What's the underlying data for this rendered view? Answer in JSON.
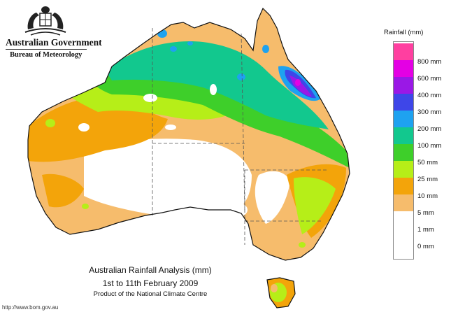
{
  "header": {
    "government": "Australian Government",
    "bureau": "Bureau of Meteorology"
  },
  "legend": {
    "title": "Rainfall (mm)",
    "items": [
      {
        "label": "800 mm",
        "color": "#ff3fa0"
      },
      {
        "label": "600 mm",
        "color": "#e400e4"
      },
      {
        "label": "400 mm",
        "color": "#9a18e6"
      },
      {
        "label": "300 mm",
        "color": "#3e46e8"
      },
      {
        "label": "200 mm",
        "color": "#1ea2f0"
      },
      {
        "label": "100 mm",
        "color": "#12c88e"
      },
      {
        "label": "50 mm",
        "color": "#3ecf2a"
      },
      {
        "label": "25 mm",
        "color": "#b6ee18"
      },
      {
        "label": "10 mm",
        "color": "#f3a40a"
      },
      {
        "label": "5 mm",
        "color": "#f6bc6c"
      },
      {
        "label": "1 mm",
        "color": "#ffffff"
      },
      {
        "label": "0 mm",
        "color": "#ffffff"
      }
    ]
  },
  "caption": {
    "line1": "Australian Rainfall Analysis (mm)",
    "line2": "1st to 11th February 2009",
    "line3": "Product of the National Climate Centre"
  },
  "footer": {
    "url": "http://www.bom.gov.au"
  },
  "map": {
    "region": "Australia",
    "colors": {
      "outline": "#111111",
      "state_border": "#555555"
    }
  }
}
